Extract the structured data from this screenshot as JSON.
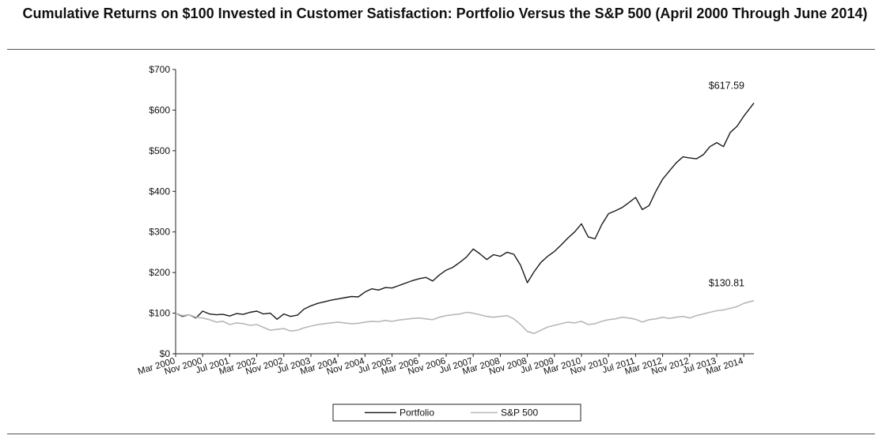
{
  "title": "Cumulative Returns on $100 Invested in Customer Satisfaction: Portfolio Versus the S&P 500 (April 2000 Through June 2014)",
  "chart_data": {
    "type": "line",
    "title": "Cumulative Returns on $100 Invested in Customer Satisfaction: Portfolio Versus the S&P 500 (April 2000 Through June 2014)",
    "xlabel": "",
    "ylabel": "",
    "x_range": [
      "2000-03",
      "2014-06"
    ],
    "ylim": [
      0,
      700
    ],
    "y_ticks": [
      0,
      100,
      200,
      300,
      400,
      500,
      600,
      700
    ],
    "y_tick_labels": [
      "$0",
      "$100",
      "$200",
      "$300",
      "$400",
      "$500",
      "$600",
      "$700"
    ],
    "x_tick_labels": [
      "Mar 2000",
      "Nov 2000",
      "Jul 2001",
      "Mar 2002",
      "Nov 2002",
      "Jul 2003",
      "Mar 2004",
      "Nov 2004",
      "Jul 2005",
      "Mar 2006",
      "Nov 2006",
      "Jul 2007",
      "Mar 2008",
      "Nov 2008",
      "Jul 2009",
      "Mar 2010",
      "Nov 2010",
      "Jul 2011",
      "Mar 2012",
      "Nov 2012",
      "Jul 2013",
      "Mar 2014"
    ],
    "x_tick_dates": [
      "2000-03",
      "2000-11",
      "2001-07",
      "2002-03",
      "2002-11",
      "2003-07",
      "2004-03",
      "2004-11",
      "2005-07",
      "2006-03",
      "2006-11",
      "2007-07",
      "2008-03",
      "2008-11",
      "2009-07",
      "2010-03",
      "2010-11",
      "2011-07",
      "2012-03",
      "2012-11",
      "2013-07",
      "2014-03"
    ],
    "grid": false,
    "legend_placement": "bottom-center",
    "series": [
      {
        "name": "Portfolio",
        "color": "#1a1a1a",
        "x": [
          "2000-03",
          "2000-05",
          "2000-07",
          "2000-09",
          "2000-11",
          "2001-01",
          "2001-03",
          "2001-05",
          "2001-07",
          "2001-09",
          "2001-11",
          "2002-01",
          "2002-03",
          "2002-05",
          "2002-07",
          "2002-09",
          "2002-11",
          "2003-01",
          "2003-03",
          "2003-05",
          "2003-07",
          "2003-09",
          "2003-11",
          "2004-01",
          "2004-03",
          "2004-05",
          "2004-07",
          "2004-09",
          "2004-11",
          "2005-01",
          "2005-03",
          "2005-05",
          "2005-07",
          "2005-09",
          "2005-11",
          "2006-01",
          "2006-03",
          "2006-05",
          "2006-07",
          "2006-09",
          "2006-11",
          "2007-01",
          "2007-03",
          "2007-05",
          "2007-07",
          "2007-09",
          "2007-11",
          "2008-01",
          "2008-03",
          "2008-05",
          "2008-07",
          "2008-09",
          "2008-11",
          "2009-01",
          "2009-03",
          "2009-05",
          "2009-07",
          "2009-09",
          "2009-11",
          "2010-01",
          "2010-03",
          "2010-05",
          "2010-07",
          "2010-09",
          "2010-11",
          "2011-01",
          "2011-03",
          "2011-05",
          "2011-07",
          "2011-09",
          "2011-11",
          "2012-01",
          "2012-03",
          "2012-05",
          "2012-07",
          "2012-09",
          "2012-11",
          "2013-01",
          "2013-03",
          "2013-05",
          "2013-07",
          "2013-09",
          "2013-11",
          "2014-01",
          "2014-03",
          "2014-06"
        ],
        "values": [
          100,
          92,
          96,
          88,
          105,
          98,
          96,
          97,
          93,
          99,
          97,
          102,
          105,
          98,
          100,
          85,
          98,
          92,
          95,
          110,
          118,
          124,
          128,
          132,
          135,
          138,
          141,
          140,
          152,
          160,
          157,
          163,
          162,
          168,
          174,
          180,
          185,
          188,
          179,
          194,
          206,
          213,
          225,
          238,
          258,
          246,
          232,
          244,
          240,
          250,
          245,
          218,
          175,
          202,
          225,
          240,
          252,
          268,
          285,
          300,
          320,
          288,
          283,
          318,
          345,
          352,
          360,
          372,
          385,
          355,
          365,
          400,
          430,
          450,
          470,
          485,
          482,
          480,
          490,
          510,
          520,
          510,
          545,
          560,
          585,
          617.59
        ]
      },
      {
        "name": "S&P 500",
        "color": "#b8b8b8",
        "x": [
          "2000-03",
          "2000-05",
          "2000-07",
          "2000-09",
          "2000-11",
          "2001-01",
          "2001-03",
          "2001-05",
          "2001-07",
          "2001-09",
          "2001-11",
          "2002-01",
          "2002-03",
          "2002-05",
          "2002-07",
          "2002-09",
          "2002-11",
          "2003-01",
          "2003-03",
          "2003-05",
          "2003-07",
          "2003-09",
          "2003-11",
          "2004-01",
          "2004-03",
          "2004-05",
          "2004-07",
          "2004-09",
          "2004-11",
          "2005-01",
          "2005-03",
          "2005-05",
          "2005-07",
          "2005-09",
          "2005-11",
          "2006-01",
          "2006-03",
          "2006-05",
          "2006-07",
          "2006-09",
          "2006-11",
          "2007-01",
          "2007-03",
          "2007-05",
          "2007-07",
          "2007-09",
          "2007-11",
          "2008-01",
          "2008-03",
          "2008-05",
          "2008-07",
          "2008-09",
          "2008-11",
          "2009-01",
          "2009-03",
          "2009-05",
          "2009-07",
          "2009-09",
          "2009-11",
          "2010-01",
          "2010-03",
          "2010-05",
          "2010-07",
          "2010-09",
          "2010-11",
          "2011-01",
          "2011-03",
          "2011-05",
          "2011-07",
          "2011-09",
          "2011-11",
          "2012-01",
          "2012-03",
          "2012-05",
          "2012-07",
          "2012-09",
          "2012-11",
          "2013-01",
          "2013-03",
          "2013-05",
          "2013-07",
          "2013-09",
          "2013-11",
          "2014-01",
          "2014-03",
          "2014-06"
        ],
        "values": [
          100,
          94,
          96,
          90,
          88,
          84,
          78,
          80,
          72,
          76,
          74,
          70,
          72,
          65,
          58,
          60,
          62,
          56,
          58,
          64,
          68,
          72,
          74,
          76,
          78,
          76,
          74,
          75,
          78,
          80,
          79,
          82,
          80,
          83,
          85,
          87,
          88,
          86,
          84,
          90,
          94,
          96,
          98,
          102,
          100,
          96,
          92,
          90,
          92,
          94,
          86,
          72,
          55,
          50,
          58,
          66,
          70,
          74,
          78,
          76,
          80,
          72,
          74,
          80,
          84,
          86,
          90,
          88,
          85,
          78,
          84,
          86,
          90,
          87,
          90,
          92,
          88,
          94,
          98,
          102,
          106,
          108,
          112,
          116,
          124,
          130.81
        ]
      }
    ],
    "annotations": [
      {
        "text": "$617.59",
        "series": "Portfolio",
        "at": "end"
      },
      {
        "text": "$130.81",
        "series": "S&P 500",
        "at": "end"
      }
    ]
  }
}
